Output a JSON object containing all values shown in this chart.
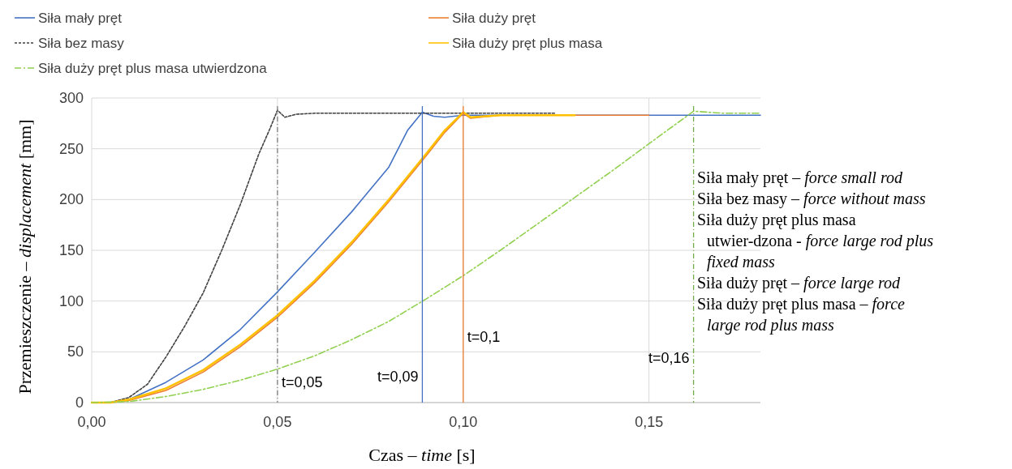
{
  "chart_data": {
    "type": "line",
    "xlabel": "Czas – time [s]",
    "ylabel": "Przemieszczenie – displacement [mm]",
    "xlim": [
      0,
      0.18
    ],
    "xticks": [
      {
        "value": 0,
        "label": "0,00"
      },
      {
        "value": 0.05,
        "label": "0,05"
      },
      {
        "value": 0.1,
        "label": "0,10"
      },
      {
        "value": 0.15,
        "label": "0,15"
      }
    ],
    "ylim": [
      0,
      300
    ],
    "yticks": [
      0,
      50,
      100,
      150,
      200,
      250,
      300
    ],
    "grid": true,
    "legend": "top",
    "series": [
      {
        "name": "Siła mały pręt",
        "color": "#4472c4",
        "line_style": "solid",
        "x": [
          0,
          0.005,
          0.01,
          0.02,
          0.03,
          0.04,
          0.05,
          0.06,
          0.07,
          0.08,
          0.085,
          0.089,
          0.092,
          0.095,
          0.1,
          0.18
        ],
        "values": [
          0,
          0,
          3,
          20,
          42,
          72,
          109,
          148,
          188,
          232,
          268,
          286,
          282,
          281,
          283,
          283
        ]
      },
      {
        "name": "Siła duży pręt",
        "color": "#ed7d31",
        "line_style": "solid",
        "x": [
          0,
          0.005,
          0.01,
          0.02,
          0.03,
          0.04,
          0.05,
          0.06,
          0.07,
          0.08,
          0.09,
          0.095,
          0.1,
          0.102,
          0.11,
          0.15
        ],
        "values": [
          0,
          0,
          2,
          12,
          30,
          55,
          84,
          118,
          156,
          198,
          243,
          266,
          285,
          280,
          283,
          283
        ]
      },
      {
        "name": "Siła bez masy",
        "color": "#404040",
        "line_style": "dotted",
        "x": [
          0.005,
          0.01,
          0.015,
          0.02,
          0.025,
          0.03,
          0.035,
          0.04,
          0.045,
          0.048,
          0.05,
          0.052,
          0.055,
          0.06,
          0.125
        ],
        "values": [
          0,
          5,
          18,
          45,
          75,
          108,
          150,
          195,
          245,
          270,
          288,
          281,
          284,
          285,
          285
        ]
      },
      {
        "name": "Siła duży pręt plus masa",
        "color": "#ffc000",
        "line_style": "solid",
        "x": [
          0,
          0.005,
          0.01,
          0.02,
          0.03,
          0.04,
          0.05,
          0.06,
          0.07,
          0.08,
          0.09,
          0.095,
          0.1,
          0.102,
          0.11,
          0.13
        ],
        "values": [
          0,
          0,
          3,
          14,
          32,
          57,
          86,
          120,
          158,
          200,
          245,
          268,
          286,
          281,
          283,
          283
        ]
      },
      {
        "name": "Siła duży pręt plus masa utwierdzona",
        "color": "#92d050",
        "line_style": "dashed",
        "x": [
          0,
          0.01,
          0.02,
          0.03,
          0.04,
          0.05,
          0.06,
          0.07,
          0.08,
          0.09,
          0.1,
          0.11,
          0.12,
          0.13,
          0.14,
          0.15,
          0.162,
          0.17,
          0.18
        ],
        "values": [
          0,
          1,
          6,
          13,
          22,
          33,
          46,
          62,
          80,
          102,
          125,
          150,
          176,
          202,
          228,
          255,
          287,
          285,
          285
        ]
      }
    ],
    "ref_lines": [
      {
        "axis": "x",
        "value": 0.05,
        "label": "t=0,05",
        "color": "#808080",
        "line_style": "dashed"
      },
      {
        "axis": "x",
        "value": 0.089,
        "label": "t=0,09",
        "color": "#4472c4",
        "line_style": "solid"
      },
      {
        "axis": "x",
        "value": 0.1,
        "label": "t=0,1",
        "color": "#ed7d31",
        "line_style": "solid"
      },
      {
        "axis": "x",
        "value": 0.162,
        "label": "t=0,16",
        "color": "#70ad47",
        "line_style": "dashed"
      }
    ],
    "annotations": [
      "Siła mały pręt – force small rod",
      "Siła bez masy – force without mass",
      "Siła duży pręt plus masa utwier-dzona - force large rod plus fixed mass",
      "Siła duży pręt – force large rod",
      "Siła duży pręt plus masa – force large rod plus mass"
    ]
  }
}
